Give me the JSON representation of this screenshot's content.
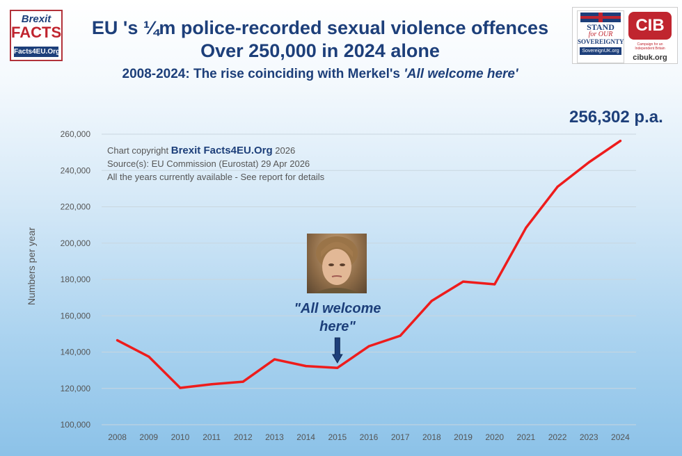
{
  "header": {
    "title_line1": "EU 's ¼m police-recorded sexual violence offences",
    "title_line2": "Over 250,000 in 2024 alone",
    "subtitle_prefix": "2008-2024: The rise coinciding with Merkel's ",
    "subtitle_quote": "'All welcome here'"
  },
  "logos": {
    "left": {
      "line1": "Brexit",
      "line2": "FACTS",
      "line3": "Facts4EU.Org"
    },
    "sovereign": {
      "line1": "STAND",
      "line2": "for OUR",
      "line3": "SOVEREIGNTY",
      "line4": "SovereignUK.org"
    },
    "cibuk": {
      "mark": "CIB",
      "tagline": "Campaign for an Independent Britain",
      "url": "cibuk.org"
    }
  },
  "credits": {
    "copyright_prefix": "Chart copyright ",
    "copyright_brand": "Brexit Facts4EU.Org",
    "copyright_year": " 2026",
    "source": "Source(s): EU Commission (Eurostat) 29 Apr 2026",
    "note": "All the years currently available - See report for details"
  },
  "annotation": {
    "text": "\"All welcome here\"",
    "year": 2015
  },
  "callout": {
    "text": "256,302  p.a."
  },
  "colors": {
    "line": "#ee1c1c",
    "title": "#1d3f7a",
    "gridline": "#c9d6df",
    "arrow": "#1d3f7a"
  },
  "chart_data": {
    "type": "line",
    "title": "EU 's ¼m police-recorded sexual violence offences",
    "ylabel": "Numbers per year",
    "xlabel": "",
    "ylim": [
      100000,
      260000
    ],
    "yticks": [
      100000,
      120000,
      140000,
      160000,
      180000,
      200000,
      220000,
      240000,
      260000
    ],
    "ytick_labels": [
      "100,000",
      "120,000",
      "140,000",
      "160,000",
      "180,000",
      "200,000",
      "220,000",
      "240,000",
      "260,000"
    ],
    "grid": true,
    "categories": [
      "2008",
      "2009",
      "2010",
      "2011",
      "2012",
      "2013",
      "2014",
      "2015",
      "2016",
      "2017",
      "2018",
      "2019",
      "2020",
      "2021",
      "2022",
      "2023",
      "2024"
    ],
    "series": [
      {
        "values": [
          146500,
          137500,
          120300,
          122300,
          123700,
          136000,
          132300,
          131300,
          143200,
          149000,
          168200,
          178800,
          177300,
          208500,
          231000,
          244500,
          256302
        ]
      }
    ]
  }
}
